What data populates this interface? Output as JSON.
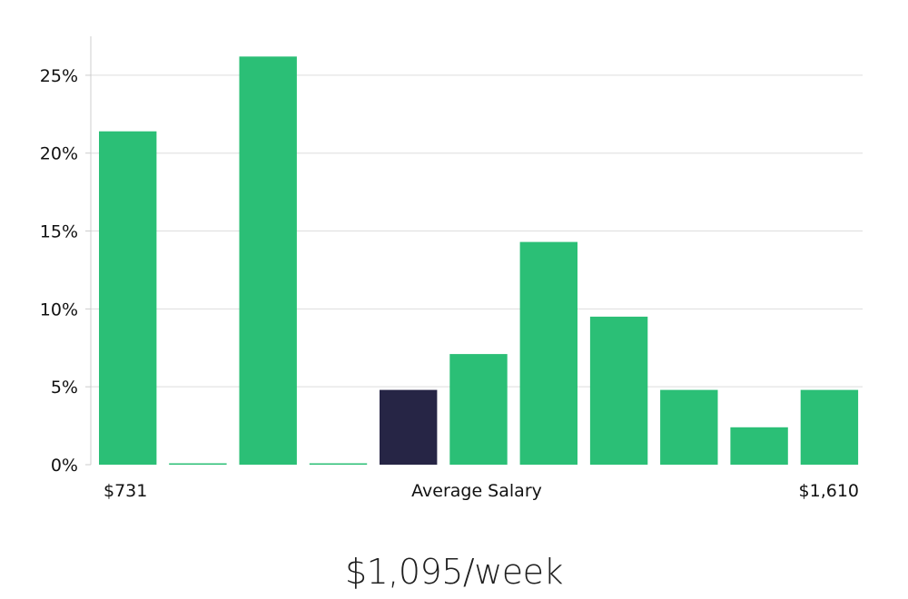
{
  "chart_data": {
    "type": "bar",
    "title": "",
    "xlabel": "Average Salary",
    "ylabel": "",
    "ylim": [
      0,
      27.5
    ],
    "yticks": [
      0,
      5,
      10,
      15,
      20,
      25
    ],
    "ytick_labels": [
      "0%",
      "5%",
      "10%",
      "15%",
      "20%",
      "25%"
    ],
    "grid": true,
    "x_start_label": "$731",
    "x_end_label": "$1,610",
    "values": [
      21.4,
      0,
      26.2,
      0,
      4.8,
      7.1,
      14.3,
      9.5,
      4.8,
      2.4,
      4.8
    ],
    "highlight_index": 4,
    "colors": {
      "bar": "#2bbf76",
      "highlight": "#262545",
      "grid": "#dddddd",
      "axis": "#cccccc"
    }
  },
  "summary": {
    "salary_text": "$1,095/week"
  }
}
